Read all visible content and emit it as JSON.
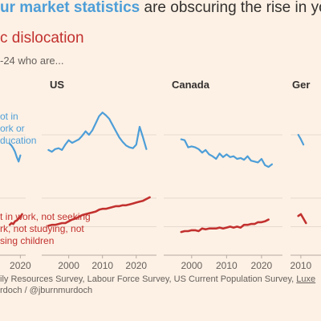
{
  "title": {
    "part1": "ur market statistics",
    "part2": " are obscuring the rise in yo",
    "part3": "c dislocation"
  },
  "subtitle": "-24 who are...",
  "labels": {
    "blue": [
      "ot in",
      "ork or",
      "ducation"
    ],
    "red": [
      "t in work, not seeking",
      "rk, not studying, not",
      "sing children"
    ]
  },
  "source": {
    "line1_a": "ily Resources Survey, Labour Force Survey, US Current Population Survey, ",
    "line1_b": "Luxe",
    "line2": "rdoch / @jburnmurdoch"
  },
  "colors": {
    "blue": "#4d9ed8",
    "red": "#c2312f",
    "background": "#fdf1e5",
    "grid": "#e6d9ce"
  },
  "chart_data": [
    {
      "type": "line",
      "title": "",
      "x_ticks": [
        2020
      ],
      "xlim": [
        2004,
        2023
      ],
      "series": [
        {
          "color": "blue",
          "x": [
            2014,
            2015,
            2016,
            2017,
            2018,
            2019,
            2020
          ],
          "y": [
            12.5,
            12.3,
            12.0,
            11.6,
            11.0,
            10.5,
            11.2
          ]
        },
        {
          "color": "red",
          "x": [
            2014,
            2015,
            2016,
            2017,
            2018,
            2019,
            2020,
            2021
          ],
          "y": [
            3.4,
            3.6,
            3.5,
            3.8,
            3.9,
            4.1,
            4.3,
            4.6
          ]
        }
      ]
    },
    {
      "type": "line",
      "title": "US",
      "x_ticks": [
        2000,
        2010,
        2020
      ],
      "xlim": [
        1992,
        2026
      ],
      "series": [
        {
          "color": "blue",
          "x": [
            1994,
            1995,
            1996,
            1997,
            1998,
            1999,
            2000,
            2001,
            2002,
            2003,
            2004,
            2005,
            2006,
            2007,
            2008,
            2009,
            2010,
            2011,
            2012,
            2013,
            2014,
            2015,
            2016,
            2017,
            2018,
            2019,
            2020,
            2021,
            2022,
            2023
          ],
          "y": [
            11.8,
            11.6,
            11.9,
            12.0,
            11.8,
            12.4,
            12.9,
            12.6,
            12.8,
            13.0,
            13.4,
            13.9,
            13.5,
            14.0,
            14.8,
            15.6,
            16.0,
            15.7,
            15.3,
            14.6,
            13.9,
            13.2,
            12.7,
            12.3,
            12.1,
            12.0,
            12.4,
            14.4,
            13.2,
            11.9
          ]
        },
        {
          "color": "red",
          "x": [
            1994,
            1995,
            1996,
            1997,
            1998,
            1999,
            2000,
            2001,
            2002,
            2003,
            2004,
            2005,
            2006,
            2007,
            2008,
            2009,
            2010,
            2011,
            2012,
            2013,
            2014,
            2015,
            2016,
            2017,
            2018,
            2019,
            2020,
            2021,
            2022,
            2023,
            2024
          ],
          "y": [
            3.3,
            3.4,
            3.4,
            3.5,
            3.6,
            3.6,
            3.8,
            4.0,
            4.1,
            4.3,
            4.5,
            4.6,
            4.7,
            4.8,
            4.9,
            5.1,
            5.2,
            5.2,
            5.3,
            5.4,
            5.5,
            5.5,
            5.6,
            5.6,
            5.7,
            5.8,
            5.9,
            6.0,
            6.1,
            6.3,
            6.5
          ]
        }
      ]
    },
    {
      "type": "line",
      "title": "Canada",
      "x_ticks": [
        2000,
        2010,
        2020
      ],
      "xlim": [
        1992,
        2026
      ],
      "series": [
        {
          "color": "blue",
          "x": [
            1997,
            1998,
            1999,
            2000,
            2001,
            2002,
            2003,
            2004,
            2005,
            2006,
            2007,
            2008,
            2009,
            2010,
            2011,
            2012,
            2013,
            2014,
            2015,
            2016,
            2017,
            2018,
            2019,
            2020,
            2021,
            2022,
            2023
          ],
          "y": [
            13.0,
            12.9,
            12.1,
            12.2,
            12.1,
            11.9,
            11.5,
            11.8,
            11.3,
            11.1,
            10.8,
            11.4,
            11.0,
            11.3,
            11.0,
            11.1,
            10.8,
            10.9,
            10.7,
            11.1,
            10.6,
            10.5,
            10.4,
            10.8,
            10.1,
            9.9,
            10.2
          ]
        },
        {
          "color": "red",
          "x": [
            1997,
            1998,
            1999,
            2000,
            2001,
            2002,
            2003,
            2004,
            2005,
            2006,
            2007,
            2008,
            2009,
            2010,
            2011,
            2012,
            2013,
            2014,
            2015,
            2016,
            2017,
            2018,
            2019,
            2020,
            2021,
            2022
          ],
          "y": [
            2.6,
            2.7,
            2.7,
            2.8,
            2.8,
            2.7,
            3.0,
            2.9,
            3.0,
            3.0,
            3.0,
            3.1,
            3.0,
            3.1,
            3.2,
            3.1,
            3.2,
            3.1,
            3.4,
            3.4,
            3.5,
            3.5,
            3.7,
            3.7,
            3.8,
            4.0
          ]
        }
      ]
    },
    {
      "type": "line",
      "title": "Ger",
      "x_ticks": [
        2010
      ],
      "xlim": [
        2006,
        2024
      ],
      "series": [
        {
          "color": "blue",
          "x": [
            2009,
            2010,
            2011
          ],
          "y": [
            13.5,
            13.0,
            12.4
          ]
        },
        {
          "color": "red",
          "x": [
            2009,
            2010,
            2011,
            2012
          ],
          "y": [
            4.4,
            4.6,
            4.1,
            3.6
          ]
        }
      ]
    }
  ]
}
